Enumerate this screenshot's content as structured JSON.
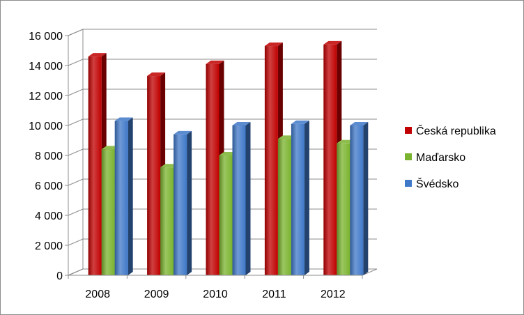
{
  "chart_data": {
    "type": "bar",
    "style": "3d-clustered-column",
    "categories": [
      "2008",
      "2009",
      "2010",
      "2011",
      "2012"
    ],
    "series": [
      {
        "name": "Česká republika",
        "color": "#c00000",
        "values": [
          14600,
          13300,
          14100,
          15300,
          15400
        ]
      },
      {
        "name": "Maďarsko",
        "color": "#7ab32e",
        "values": [
          8400,
          7200,
          8000,
          9100,
          8800
        ]
      },
      {
        "name": "Švédsko",
        "color": "#3f78c8",
        "values": [
          10300,
          9400,
          10000,
          10100,
          10000
        ]
      }
    ],
    "yticks": [
      "0",
      "2 000",
      "4 000",
      "6 000",
      "8 000",
      "10 000",
      "12 000",
      "14 000",
      "16 000"
    ],
    "ylim": [
      0,
      16000
    ],
    "ystep": 2000,
    "grid": true,
    "legend_position": "right",
    "title": "",
    "xlabel": "",
    "ylabel": ""
  }
}
